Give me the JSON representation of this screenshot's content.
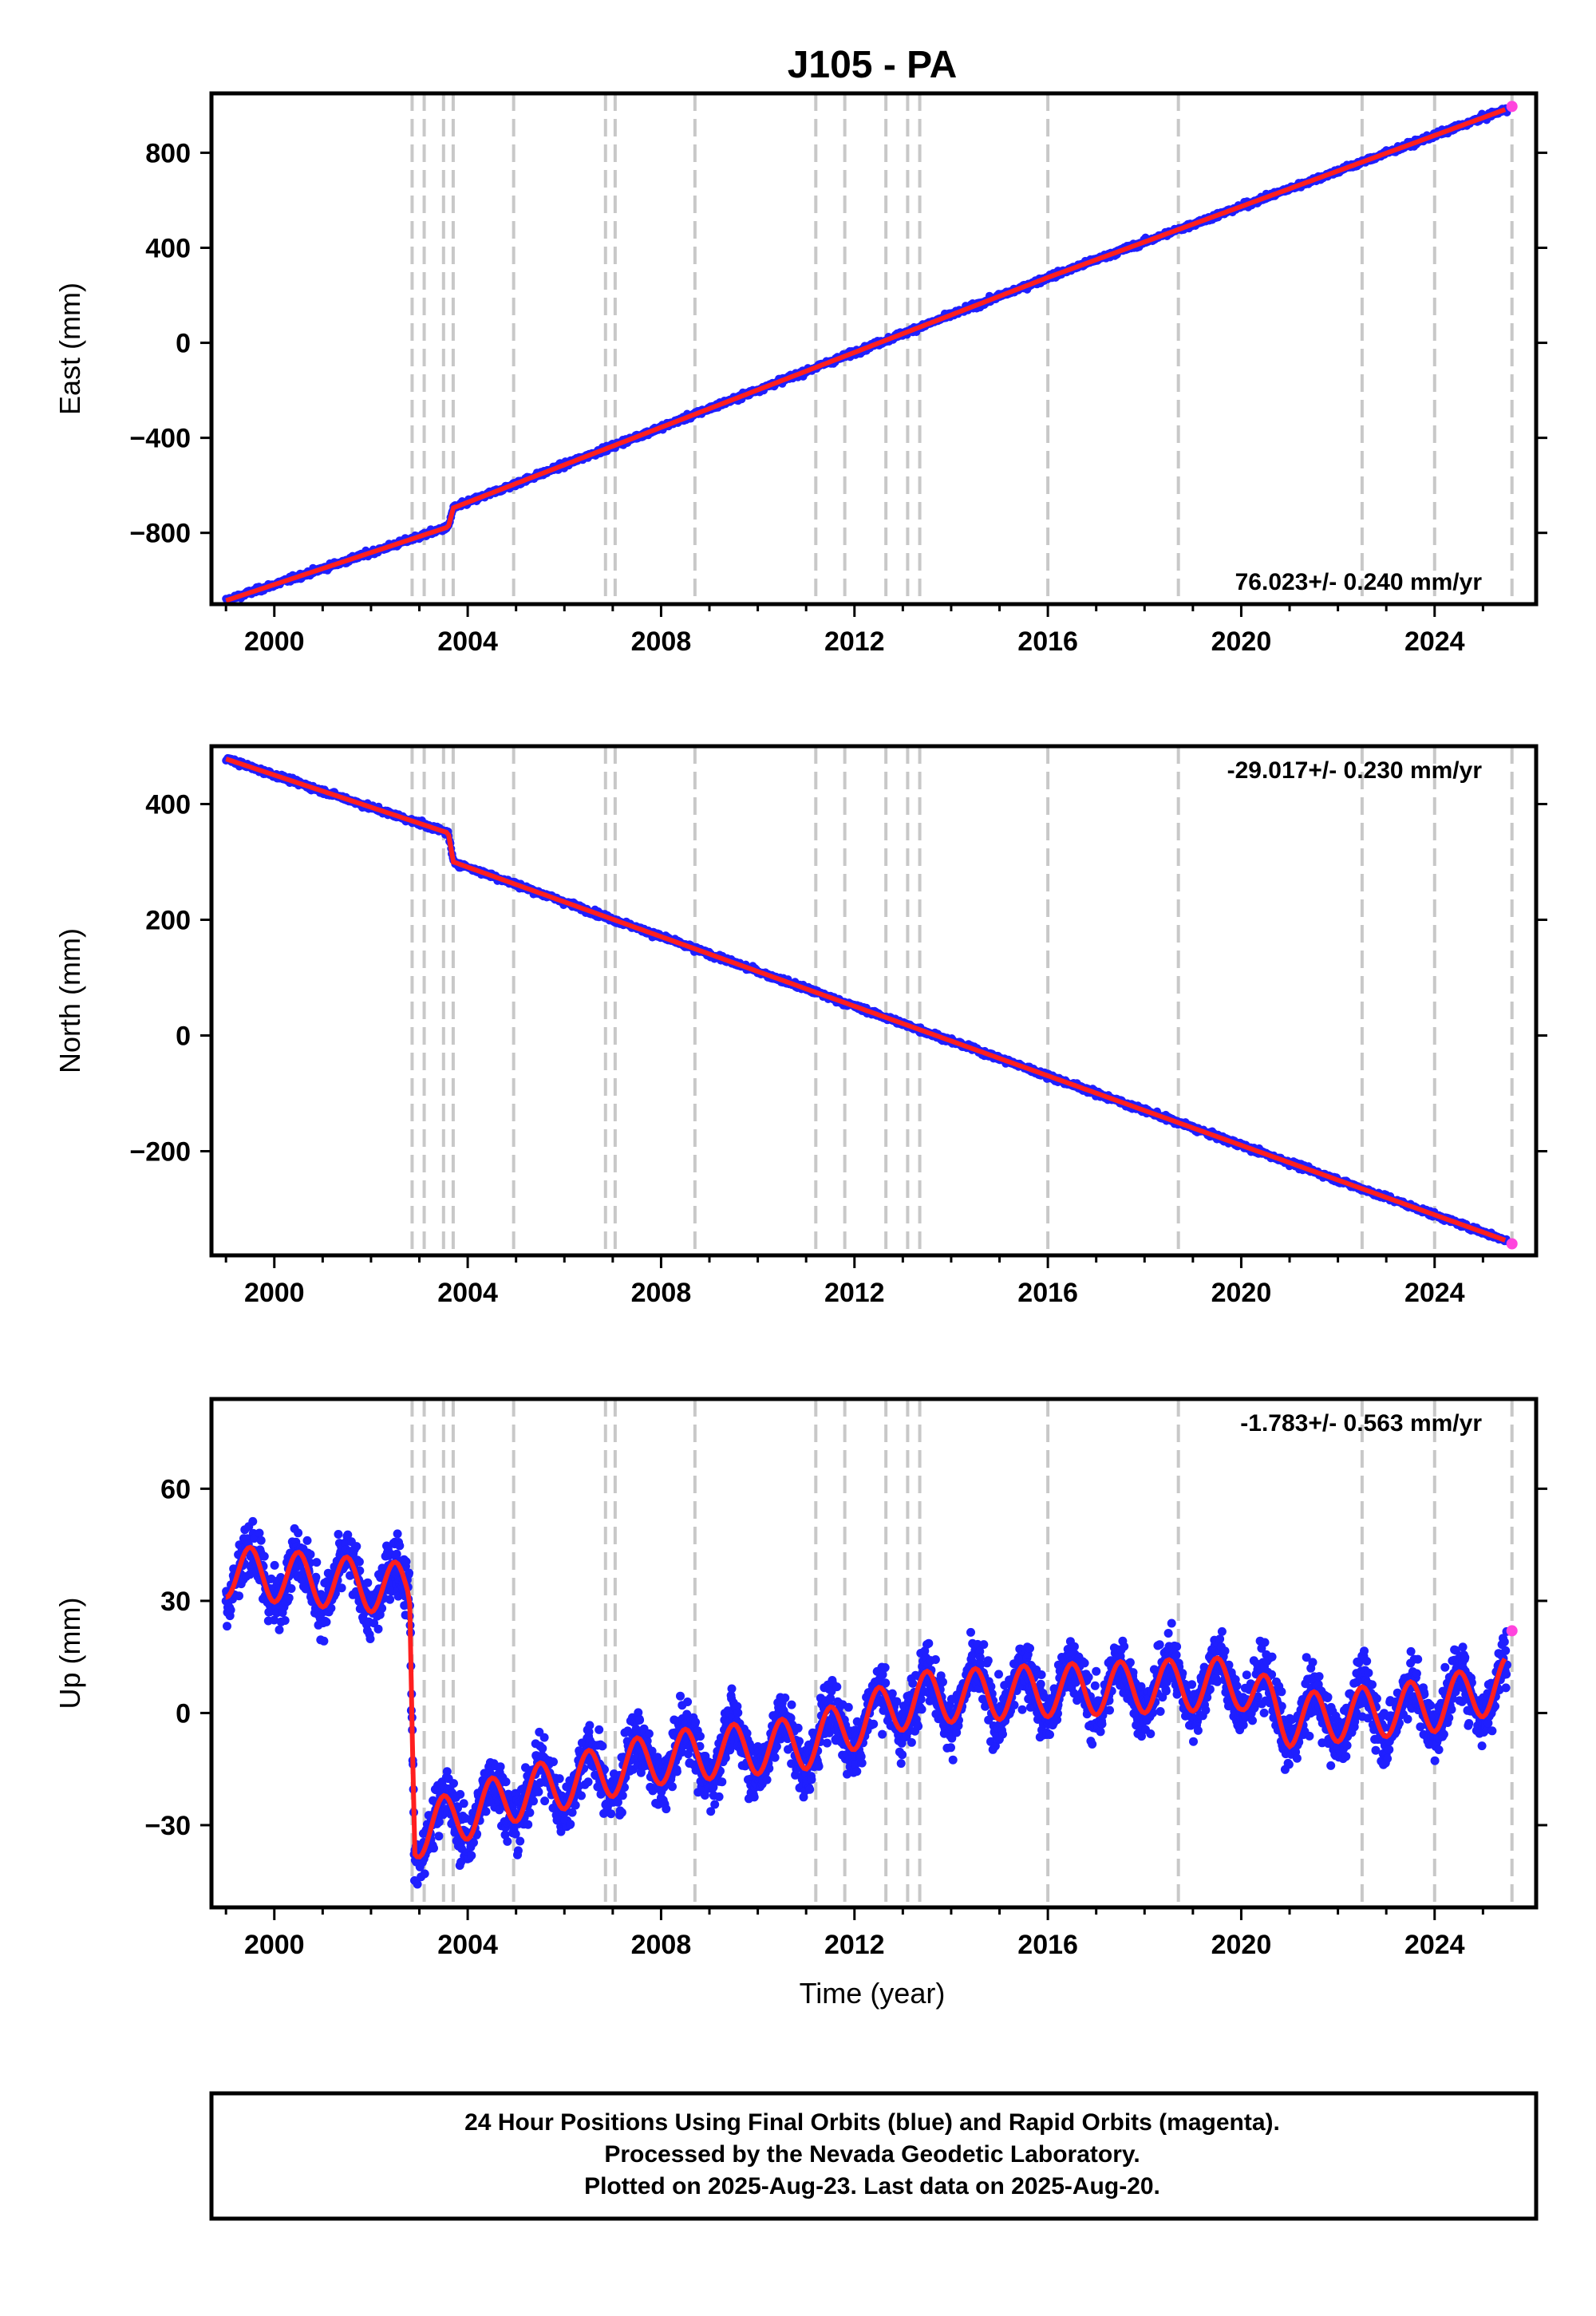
{
  "title": "J105 - PA",
  "xlabel": "Time (year)",
  "footer": {
    "line1": "24 Hour Positions Using Final Orbits (blue) and Rapid Orbits (magenta).",
    "line2": "Processed by the Nevada Geodetic Laboratory.",
    "line3": "Plotted on 2025-Aug-23. Last data on 2025-Aug-20."
  },
  "colors": {
    "final": "#1f1fff",
    "rapid": "#ff44dd",
    "model": "#ff1f1f",
    "steps": "#c8c8c8"
  },
  "chart_data": [
    {
      "type": "scatter",
      "name": "east",
      "ylabel": "East (mm)",
      "rate": "76.023+/- 0.240 mm/yr",
      "xlim": [
        1998.7,
        2026.1
      ],
      "ylim": [
        -1100,
        1050
      ],
      "yticks": [
        -800,
        -400,
        0,
        400,
        800
      ],
      "xticks": [
        2000,
        2004,
        2008,
        2012,
        2016,
        2020,
        2024
      ],
      "series": [
        {
          "name": "final",
          "x": [
            1999.0,
            2003.6,
            2003.7,
            2016.0,
            2025.5
          ],
          "y": [
            -1085,
            -775,
            -695,
            275,
            985
          ]
        },
        {
          "name": "rapid",
          "x": [
            2025.6
          ],
          "y": [
            995
          ]
        }
      ]
    },
    {
      "type": "scatter",
      "name": "north",
      "ylabel": "North (mm)",
      "rate": "-29.017+/- 0.230 mm/yr",
      "xlim": [
        1998.7,
        2026.1
      ],
      "ylim": [
        -380,
        500
      ],
      "yticks": [
        -200,
        0,
        200,
        400
      ],
      "xticks": [
        2000,
        2004,
        2008,
        2012,
        2016,
        2020,
        2024
      ],
      "series": [
        {
          "name": "final",
          "x": [
            1999.0,
            2003.6,
            2003.7,
            2025.5
          ],
          "y": [
            478,
            350,
            300,
            -355
          ]
        },
        {
          "name": "rapid",
          "x": [
            2025.6
          ],
          "y": [
            -360
          ]
        }
      ]
    },
    {
      "type": "scatter",
      "name": "up",
      "ylabel": "Up (mm)",
      "rate": "-1.783+/- 0.563 mm/yr",
      "xlim": [
        1998.7,
        2026.1
      ],
      "ylim": [
        -52,
        84
      ],
      "yticks": [
        -30,
        0,
        30,
        60
      ],
      "xticks": [
        2000,
        2004,
        2008,
        2012,
        2016,
        2020,
        2024
      ],
      "series": [
        {
          "name": "final",
          "x": [
            1999.0,
            2002.8,
            2002.9,
            2005.0,
            2008.0,
            2011.0,
            2013.3,
            2016.0,
            2020.0,
            2021.0,
            2024.0,
            2025.5
          ],
          "y": [
            38,
            33,
            -32,
            -22,
            -12,
            -8,
            4,
            6,
            8,
            -2,
            2,
            8
          ]
        },
        {
          "name": "rapid",
          "x": [
            2025.6
          ],
          "y": [
            22
          ]
        }
      ]
    }
  ],
  "steps": [
    2002.85,
    2003.1,
    2003.5,
    2003.7,
    2004.95,
    2006.85,
    2007.05,
    2008.7,
    2011.2,
    2011.8,
    2012.65,
    2013.1,
    2013.35,
    2016.0,
    2018.7,
    2022.5,
    2024.0,
    2025.6
  ]
}
